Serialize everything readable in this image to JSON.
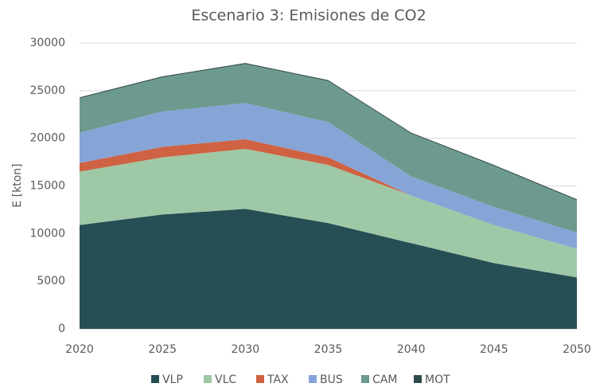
{
  "chart_data": {
    "type": "stacked_area",
    "title": "Escenario 3: Emisiones de CO2",
    "y_label": "E [kton]",
    "x": [
      2020,
      2025,
      2030,
      2035,
      2040,
      2045,
      2050
    ],
    "series": [
      {
        "name": "VLP",
        "color": "#264e55",
        "values": [
          10900,
          12000,
          12600,
          11100,
          9000,
          6900,
          5400
        ]
      },
      {
        "name": "VLC",
        "color": "#9fc8a6",
        "values": [
          5600,
          6000,
          6300,
          6100,
          5000,
          4000,
          3000
        ]
      },
      {
        "name": "TAX",
        "color": "#cf6242",
        "values": [
          900,
          1100,
          1000,
          800,
          0,
          0,
          0
        ]
      },
      {
        "name": "BUS",
        "color": "#86a5d6",
        "values": [
          3200,
          3700,
          3800,
          3700,
          2000,
          1900,
          1700
        ]
      },
      {
        "name": "CAM",
        "color": "#6d9a8f",
        "values": [
          3600,
          3600,
          4100,
          4300,
          4500,
          4300,
          3400
        ]
      },
      {
        "name": "MOT",
        "color": "#2f4a4a",
        "values": [
          100,
          100,
          100,
          100,
          100,
          100,
          100
        ]
      }
    ],
    "xlim": [
      2020,
      2050
    ],
    "xticks": [
      2020,
      2025,
      2030,
      2035,
      2040,
      2045,
      2050
    ],
    "ylim": [
      0,
      30000
    ],
    "yticks": [
      0,
      5000,
      10000,
      15000,
      20000,
      25000,
      30000
    ],
    "grid": true,
    "legend": "bottom"
  }
}
